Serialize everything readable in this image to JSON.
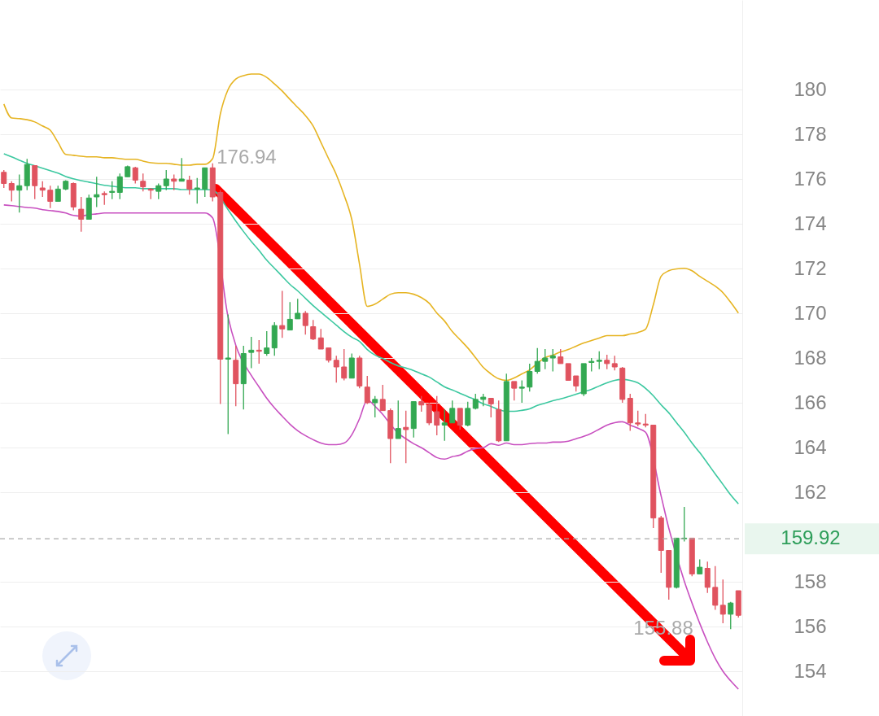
{
  "chart_data": {
    "type": "candlestick",
    "categories": [
      null,
      null,
      null,
      null,
      null,
      null,
      null,
      null,
      null,
      null,
      null,
      null,
      null,
      null,
      null,
      null,
      null,
      null,
      null,
      null,
      null,
      null,
      null,
      null,
      null,
      null,
      null,
      null,
      null,
      null,
      null,
      null,
      null,
      null,
      null,
      null,
      null,
      null,
      null,
      null,
      null,
      null,
      null,
      null,
      null,
      null,
      null,
      null,
      null,
      null,
      null,
      null,
      null,
      null,
      null,
      null,
      null,
      null,
      null,
      null,
      null,
      null,
      null,
      null,
      null,
      null,
      null,
      null,
      null,
      null,
      null,
      null,
      null,
      null,
      null,
      null,
      null,
      null,
      null,
      null,
      null,
      null,
      null,
      null,
      null,
      null,
      null,
      null,
      null,
      null,
      null,
      null,
      null,
      null,
      null,
      null
    ],
    "ohlc": [
      [
        176.3,
        176.4,
        175.6,
        175.8
      ],
      [
        175.8,
        175.9,
        175.0,
        175.5
      ],
      [
        175.5,
        176.2,
        174.5,
        175.7
      ],
      [
        175.7,
        176.9,
        175.5,
        176.65
      ],
      [
        176.6,
        176.6,
        175.1,
        175.7
      ],
      [
        175.6,
        175.9,
        175.2,
        175.5
      ],
      [
        175.5,
        175.7,
        174.7,
        175.0
      ],
      [
        175.0,
        175.7,
        175.0,
        175.55
      ],
      [
        175.55,
        175.95,
        175.5,
        175.9
      ],
      [
        175.8,
        175.85,
        174.6,
        174.75
      ],
      [
        174.65,
        175.2,
        173.65,
        174.2
      ],
      [
        174.2,
        175.3,
        174.2,
        175.15
      ],
      [
        175.2,
        176.1,
        174.75,
        175.3
      ],
      [
        175.35,
        175.45,
        174.85,
        175.3
      ],
      [
        175.4,
        175.9,
        175.1,
        175.45
      ],
      [
        175.4,
        176.25,
        175.1,
        176.1
      ],
      [
        176.1,
        176.6,
        176.1,
        176.55
      ],
      [
        176.5,
        176.55,
        175.8,
        175.95
      ],
      [
        175.9,
        176.25,
        175.45,
        175.65
      ],
      [
        175.55,
        175.6,
        175.1,
        175.5
      ],
      [
        175.45,
        175.8,
        175.1,
        175.7
      ],
      [
        175.7,
        176.4,
        175.5,
        176.0
      ],
      [
        176.0,
        176.2,
        175.5,
        175.9
      ],
      [
        175.9,
        176.94,
        175.9,
        176.0
      ],
      [
        175.95,
        176.15,
        175.3,
        175.55
      ],
      [
        175.55,
        176.05,
        174.9,
        175.6
      ],
      [
        175.55,
        176.5,
        175.2,
        176.5
      ],
      [
        176.5,
        176.7,
        175.0,
        175.2
      ],
      [
        175.4,
        175.5,
        165.95,
        167.95
      ],
      [
        167.95,
        169.95,
        164.6,
        168.0
      ],
      [
        167.9,
        168.55,
        165.85,
        166.85
      ],
      [
        166.85,
        168.55,
        165.7,
        168.2
      ],
      [
        168.25,
        168.95,
        167.55,
        168.35
      ],
      [
        168.35,
        168.8,
        167.75,
        168.3
      ],
      [
        168.2,
        169.2,
        168.1,
        168.45
      ],
      [
        168.45,
        169.6,
        168.1,
        169.45
      ],
      [
        169.45,
        171.0,
        168.9,
        169.3
      ],
      [
        169.25,
        170.5,
        169.25,
        169.73
      ],
      [
        169.75,
        170.65,
        169.75,
        170.0
      ],
      [
        170.0,
        170.1,
        169.05,
        169.45
      ],
      [
        169.4,
        169.7,
        168.8,
        168.85
      ],
      [
        168.9,
        169.3,
        168.4,
        168.4
      ],
      [
        168.45,
        168.45,
        167.8,
        167.9
      ],
      [
        167.9,
        168.1,
        166.9,
        167.6
      ],
      [
        167.6,
        168.4,
        167.0,
        167.1
      ],
      [
        167.1,
        168.2,
        167.1,
        168.0
      ],
      [
        168.0,
        168.1,
        166.65,
        166.75
      ],
      [
        166.7,
        167.2,
        165.95,
        166.0
      ],
      [
        166.0,
        166.3,
        165.35,
        166.15
      ],
      [
        166.15,
        166.8,
        165.65,
        165.65
      ],
      [
        165.65,
        165.75,
        163.3,
        164.4
      ],
      [
        164.4,
        166.1,
        164.4,
        164.85
      ],
      [
        164.9,
        165.65,
        163.3,
        164.8
      ],
      [
        164.85,
        166.05,
        164.45,
        166.05
      ],
      [
        166.05,
        166.3,
        165.6,
        165.9
      ],
      [
        165.9,
        166.0,
        165.0,
        165.1
      ],
      [
        165.6,
        166.3,
        164.55,
        165.0
      ],
      [
        165.0,
        165.7,
        164.3,
        165.1
      ],
      [
        165.1,
        166.1,
        165.1,
        165.75
      ],
      [
        165.75,
        165.75,
        164.8,
        165.0
      ],
      [
        165.0,
        166.05,
        164.95,
        165.75
      ],
      [
        165.75,
        166.4,
        165.7,
        166.15
      ],
      [
        166.15,
        166.4,
        165.85,
        166.25
      ],
      [
        166.2,
        166.2,
        165.35,
        165.95
      ],
      [
        165.7,
        166.1,
        164.25,
        164.3
      ],
      [
        164.3,
        167.3,
        164.3,
        166.95
      ],
      [
        166.95,
        166.95,
        166.1,
        166.65
      ],
      [
        166.65,
        167.0,
        166.0,
        166.7
      ],
      [
        166.7,
        167.75,
        166.5,
        167.4
      ],
      [
        167.4,
        168.45,
        167.3,
        167.85
      ],
      [
        167.85,
        168.4,
        167.5,
        168.0
      ],
      [
        168.0,
        168.4,
        167.4,
        168.1
      ],
      [
        168.05,
        168.4,
        167.75,
        167.75
      ],
      [
        167.75,
        167.75,
        167.0,
        167.0
      ],
      [
        167.2,
        167.2,
        166.5,
        166.75
      ],
      [
        166.4,
        167.75,
        166.3,
        167.75
      ],
      [
        167.8,
        168.0,
        167.4,
        167.85
      ],
      [
        167.85,
        168.3,
        167.5,
        167.9
      ],
      [
        167.9,
        168.15,
        167.5,
        167.75
      ],
      [
        167.75,
        168.1,
        167.45,
        167.6
      ],
      [
        167.55,
        167.6,
        166.0,
        166.15
      ],
      [
        166.2,
        166.4,
        164.75,
        165.1
      ],
      [
        165.1,
        165.65,
        164.95,
        165.05
      ],
      [
        165.05,
        165.5,
        164.9,
        165.0
      ],
      [
        165.0,
        165.0,
        160.4,
        160.85
      ],
      [
        160.85,
        160.95,
        158.4,
        159.4
      ],
      [
        159.4,
        159.4,
        157.2,
        157.75
      ],
      [
        157.75,
        159.95,
        157.7,
        159.95
      ],
      [
        159.92,
        161.35,
        159.8,
        159.95
      ],
      [
        159.95,
        159.95,
        158.25,
        158.35
      ],
      [
        158.35,
        159.0,
        158.35,
        158.65
      ],
      [
        158.6,
        158.9,
        157.5,
        157.75
      ],
      [
        157.75,
        158.7,
        156.75,
        156.95
      ],
      [
        156.95,
        158.1,
        156.15,
        156.55
      ],
      [
        156.55,
        157.1,
        155.88,
        157.05
      ],
      [
        157.6,
        157.6,
        156.4,
        156.5
      ]
    ],
    "series": [
      {
        "type": "line",
        "color": "#e6b422",
        "values": [
          179.35,
          178.73,
          178.7,
          178.65,
          178.55,
          178.37,
          178.18,
          177.64,
          177.1,
          177.06,
          177.02,
          176.99,
          176.99,
          176.95,
          176.95,
          176.91,
          176.88,
          176.88,
          176.8,
          176.73,
          176.7,
          176.7,
          176.66,
          176.62,
          176.62,
          176.66,
          176.66,
          176.91,
          178.91,
          180.0,
          180.47,
          180.62,
          180.69,
          180.69,
          180.54,
          180.25,
          179.93,
          179.56,
          179.2,
          178.84,
          178.37,
          177.64,
          176.91,
          176.19,
          175.28,
          174.19,
          172.19,
          170.31,
          170.41,
          170.63,
          170.85,
          170.92,
          170.92,
          170.85,
          170.7,
          170.45,
          170.01,
          169.65,
          169.18,
          168.82,
          168.45,
          168.02,
          167.58,
          167.29,
          167.07,
          167.0,
          167.11,
          167.29,
          167.47,
          167.76,
          168.02,
          168.13,
          168.27,
          168.38,
          168.53,
          168.67,
          168.78,
          168.89,
          169.0,
          169.0,
          169.0,
          169.07,
          169.14,
          169.29,
          170.38,
          171.65,
          171.9,
          171.98,
          172.01,
          171.9,
          171.65,
          171.43,
          171.21,
          170.92,
          170.49,
          170.01
        ]
      },
      {
        "type": "line",
        "color": "#3cc8a0",
        "values": [
          177.13,
          176.99,
          176.84,
          176.7,
          176.59,
          176.48,
          176.37,
          176.26,
          176.11,
          176.01,
          175.93,
          175.86,
          175.79,
          175.72,
          175.68,
          175.64,
          175.61,
          175.61,
          175.57,
          175.57,
          175.57,
          175.57,
          175.57,
          175.53,
          175.53,
          175.53,
          175.53,
          175.5,
          null,
          174.63,
          174.12,
          173.65,
          173.21,
          172.81,
          172.37,
          172.01,
          171.65,
          171.29,
          171.0,
          170.67,
          170.34,
          170.05,
          169.76,
          169.47,
          169.18,
          168.93,
          168.74,
          168.38,
          168.13,
          167.98,
          167.8,
          167.65,
          167.55,
          167.44,
          167.29,
          167.15,
          166.93,
          166.71,
          166.57,
          166.42,
          166.27,
          166.13,
          165.95,
          165.84,
          165.69,
          165.62,
          165.62,
          165.66,
          165.73,
          165.88,
          165.98,
          166.09,
          166.17,
          166.27,
          166.38,
          166.49,
          166.6,
          166.75,
          166.89,
          167.0,
          167.04,
          167.0,
          166.89,
          166.64,
          166.31,
          165.91,
          165.55,
          165.11,
          164.68,
          164.2,
          163.77,
          163.3,
          162.82,
          162.35,
          161.88,
          161.48
        ]
      },
      {
        "type": "line",
        "color": "#c850c0",
        "values": [
          174.84,
          174.81,
          174.77,
          174.73,
          174.7,
          174.63,
          174.59,
          174.55,
          174.48,
          174.37,
          174.34,
          174.41,
          174.44,
          174.48,
          174.48,
          174.48,
          174.48,
          174.48,
          174.48,
          174.48,
          174.48,
          174.48,
          174.48,
          174.48,
          174.48,
          174.48,
          174.48,
          174.26,
          null,
          169.83,
          168.56,
          null,
          167.22,
          166.71,
          166.2,
          165.77,
          165.4,
          165.04,
          164.75,
          164.53,
          164.35,
          164.2,
          164.13,
          164.13,
          164.2,
          164.57,
          165.29,
          166.13,
          165.84,
          165.48,
          165.04,
          164.64,
          164.39,
          164.17,
          163.99,
          163.77,
          163.55,
          163.48,
          163.59,
          163.66,
          163.84,
          163.95,
          163.99,
          164.17,
          164.1,
          164.2,
          164.13,
          164.13,
          164.17,
          164.2,
          164.2,
          164.24,
          164.24,
          164.28,
          164.39,
          164.5,
          164.64,
          164.82,
          165.0,
          165.11,
          165.15,
          165.0,
          164.86,
          164.68,
          null,
          161.84,
          160.39,
          null,
          158.03,
          157.05,
          156.14,
          155.31,
          154.58,
          154.0,
          153.57,
          153.2
        ]
      }
    ],
    "ylim": [
      152,
      184
    ],
    "yticks": [
      154,
      156,
      158,
      162,
      164,
      166,
      168,
      170,
      172,
      174,
      176,
      178,
      180
    ],
    "grid": "y",
    "tick_labels": "y",
    "ref_lines": [
      {
        "axis": "y",
        "value": 159.92,
        "label": "159.92",
        "color": "#aaaaaa",
        "line_style": "dashed"
      }
    ],
    "annotations": [
      "176.94",
      "155.88"
    ]
  }
}
